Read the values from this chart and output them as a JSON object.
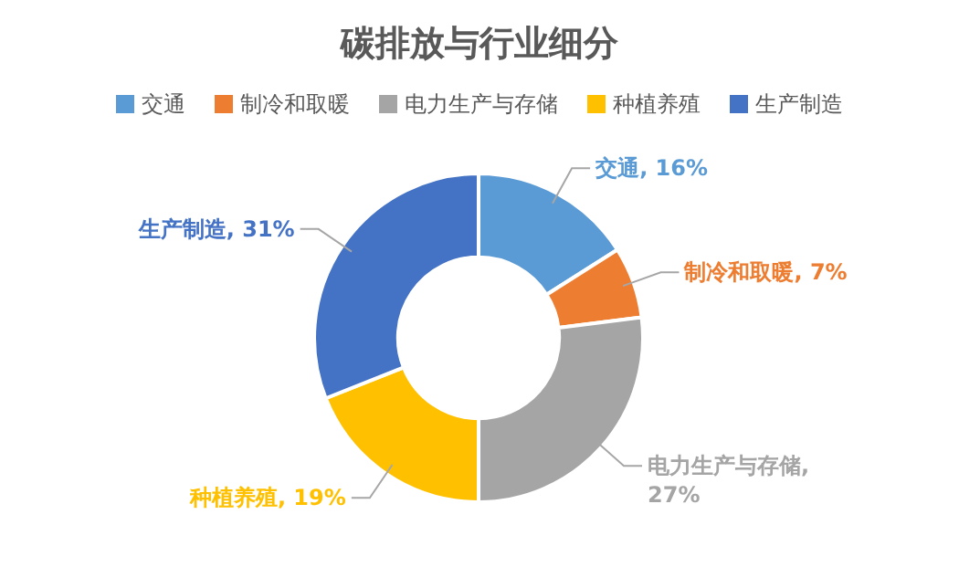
{
  "chart_data": {
    "type": "donut",
    "title": "碳排放与行业细分",
    "legend": "top",
    "categories": [
      "交通",
      "制冷和取暖",
      "电力生产与存储",
      "种植养殖",
      "生产制造"
    ],
    "values": [
      16,
      7,
      27,
      19,
      31
    ],
    "colors": [
      "#5b9bd5",
      "#ed7d31",
      "#a5a5a5",
      "#ffc000",
      "#4472c4"
    ],
    "value_labels": [
      "交通, 16%",
      "制冷和取暖, 7%",
      "电力生产与存储, 27%",
      "种植养殖, 19%",
      "生产制造, 31%"
    ]
  }
}
